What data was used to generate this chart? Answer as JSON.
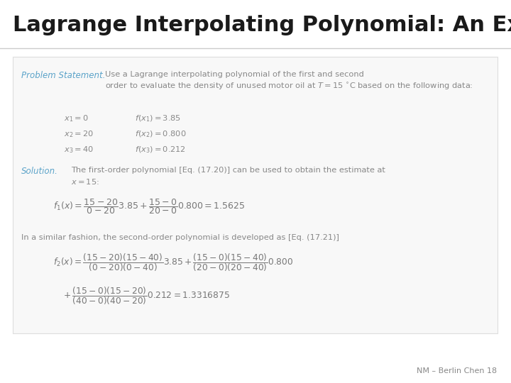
{
  "title": "Lagrange Interpolating Polynomial: An Example",
  "title_fontsize": 22,
  "background_color": "#f0f0f0",
  "slide_bg": "#ffffff",
  "title_color": "#1a1a1a",
  "accent_color": "#5ba3c9",
  "body_color": "#888888",
  "eq_color": "#777777",
  "footer_text": "NM – Berlin Chen 18",
  "box_text_color": "#aaaaaa",
  "problem_label": "Problem Statement.",
  "problem_body": "Use a Lagrange interpolating polynomial of the first and second\norder to evaluate the density of unused motor oil at $T = 15\\ ^{\\circ}$C based on the following data:",
  "data_x": [
    "$x_1 = 0$",
    "$x_2 = 20$",
    "$x_3 = 40$"
  ],
  "data_f": [
    "$f(x_1) = 3.85$",
    "$f(x_2) = 0.800$",
    "$f(x_3) = 0.212$"
  ],
  "solution_label": "Solution.",
  "solution_body": "The first-order polynomial [Eq. (17.20)] can be used to obtain the estimate at\n$x = 15$:",
  "eq1": "$f_1(x) = \\dfrac{15-20}{0-20}3.85 + \\dfrac{15-0}{20-0}0.800 = 1.5625$",
  "similar_text": "In a similar fashion, the second-order polynomial is developed as [Eq. (17.21)]",
  "eq2_line1": "$f_2(x) = \\dfrac{(15-20)(15-40)}{(0-20)(0-40)}3.85 + \\dfrac{(15-0)(15-40)}{(20-0)(20-40)}0.800$",
  "eq2_line2": "$\\quad + \\dfrac{(15-0)(15-20)}{(40-0)(40-20)}0.212 = 1.3316875$"
}
